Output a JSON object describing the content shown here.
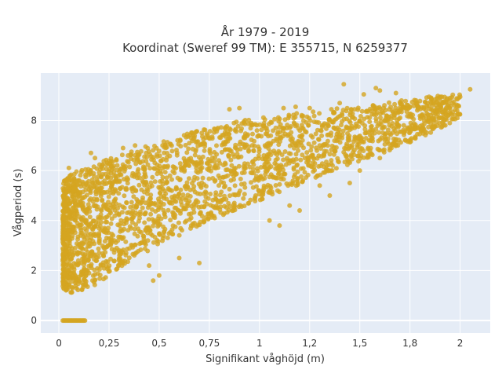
{
  "chart_data": {
    "type": "scatter",
    "title_line1": "År 1979 - 2019",
    "title_line2": "Koordinat (Sweref 99 TM): E 355715, N 6259377",
    "xlabel": "Signifikant våghöjd (m)",
    "ylabel": "Vågperiod (s)",
    "xlim": [
      -0.09,
      2.15
    ],
    "ylim": [
      -0.5,
      9.9
    ],
    "x_ticks": [
      0,
      0.25,
      0.5,
      0.75,
      1,
      1.25,
      1.5,
      1.75,
      2
    ],
    "x_tick_labels": [
      "0",
      "0,25",
      "0,5",
      "0,75",
      "1",
      "1,2",
      "1,5",
      "1,8",
      "2"
    ],
    "y_ticks": [
      0,
      2,
      4,
      6,
      8
    ],
    "y_tick_labels": [
      "0",
      "2",
      "4",
      "6",
      "8"
    ],
    "grid": true,
    "colors": {
      "point": "#d4a520",
      "plot_bg": "#e5ecf6",
      "grid": "#ffffff"
    },
    "series": [
      {
        "envelope": {
          "x": [
            0.02,
            0.05,
            0.1,
            0.15,
            0.2,
            0.25,
            0.3,
            0.4,
            0.5,
            0.6,
            0.7,
            0.8,
            0.9,
            1.0,
            1.1,
            1.2,
            1.3,
            1.4,
            1.5,
            1.6,
            1.7,
            1.8,
            1.9,
            2.0
          ],
          "y_low": [
            1.3,
            1.1,
            1.15,
            1.3,
            1.5,
            1.8,
            2.1,
            2.6,
            3.0,
            3.4,
            3.8,
            4.15,
            4.5,
            4.8,
            5.1,
            5.45,
            5.75,
            6.05,
            6.35,
            6.65,
            6.95,
            7.3,
            7.7,
            8.1
          ],
          "y_high": [
            5.5,
            5.9,
            6.0,
            6.1,
            6.3,
            6.5,
            6.7,
            6.9,
            7.1,
            7.4,
            7.6,
            7.8,
            8.0,
            8.1,
            8.2,
            8.3,
            8.4,
            8.5,
            8.55,
            8.65,
            8.8,
            8.95,
            9.0,
            9.1
          ]
        },
        "zero_period_points": {
          "x_range": [
            0.02,
            0.13
          ],
          "y": 0
        },
        "outliers": [
          [
            0.05,
            6.1
          ],
          [
            0.16,
            6.7
          ],
          [
            0.18,
            6.5
          ],
          [
            0.32,
            6.9
          ],
          [
            0.38,
            7.0
          ],
          [
            0.85,
            8.45
          ],
          [
            0.9,
            8.5
          ],
          [
            1.12,
            8.5
          ],
          [
            1.18,
            8.55
          ],
          [
            1.25,
            8.5
          ],
          [
            1.4,
            8.7
          ],
          [
            1.42,
            9.45
          ],
          [
            1.52,
            9.05
          ],
          [
            1.58,
            9.3
          ],
          [
            1.6,
            9.2
          ],
          [
            1.68,
            9.1
          ],
          [
            2.05,
            9.25
          ],
          [
            2.0,
            8.95
          ],
          [
            1.95,
            8.9
          ],
          [
            0.5,
            1.8
          ],
          [
            0.47,
            1.6
          ],
          [
            0.7,
            2.3
          ],
          [
            0.45,
            2.2
          ],
          [
            0.6,
            2.5
          ],
          [
            1.05,
            4.0
          ],
          [
            1.1,
            3.8
          ],
          [
            1.15,
            4.6
          ],
          [
            1.2,
            4.4
          ],
          [
            1.35,
            5.0
          ],
          [
            1.45,
            5.5
          ],
          [
            1.5,
            6.0
          ],
          [
            1.6,
            6.5
          ],
          [
            1.65,
            6.9
          ],
          [
            1.3,
            5.4
          ]
        ]
      }
    ]
  }
}
